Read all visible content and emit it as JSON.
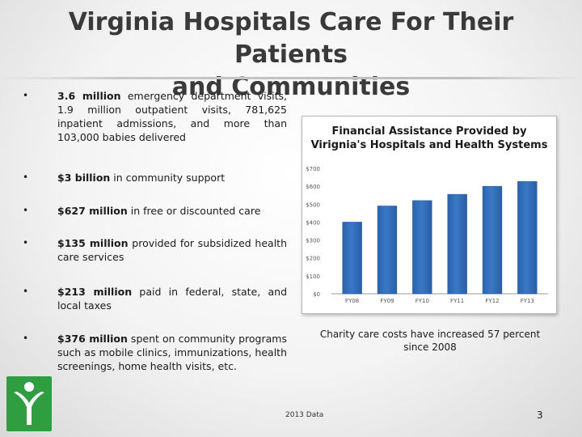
{
  "slide": {
    "title_line1": "Virginia Hospitals Care For Their Patients",
    "title_line2": "and Communities",
    "bullet_char": "•",
    "bullets": [
      {
        "bold": "3.6 million",
        "text": " emergency department visits, 1.9 million outpatient visits, 781,625 inpatient admissions, and more than 103,000 babies delivered"
      },
      {
        "bold": "$3 billion",
        "text": " in community support"
      },
      {
        "bold": "$627 million",
        "text": " in free or discounted care"
      },
      {
        "bold": "$135 million",
        "text": " provided for subsidized health care services"
      },
      {
        "bold": "$213 million",
        "text": " paid in federal, state, and local taxes"
      },
      {
        "bold": "$376 million",
        "text": " spent on community programs such as mobile clinics, immunizations, health screenings, home health visits, etc."
      }
    ],
    "caption": "Charity care costs have increased 57 percent since 2008",
    "source": "2013 Data",
    "page_number": "3",
    "logo_color": "#2e9e40"
  },
  "chart_data": {
    "type": "bar",
    "title": "Financial Assistance Provided by Virignia's Hospitals and Health Systems",
    "categories": [
      "FY08",
      "FY09",
      "FY10",
      "FY11",
      "FY12",
      "FY13"
    ],
    "values": [
      400,
      490,
      520,
      555,
      600,
      627
    ],
    "yticks": [
      "$0",
      "$100",
      "$200",
      "$300",
      "$400",
      "$500",
      "$600",
      "$700"
    ],
    "ylim": [
      0,
      700
    ],
    "grid": false,
    "bar_color": "#3a78c6"
  }
}
